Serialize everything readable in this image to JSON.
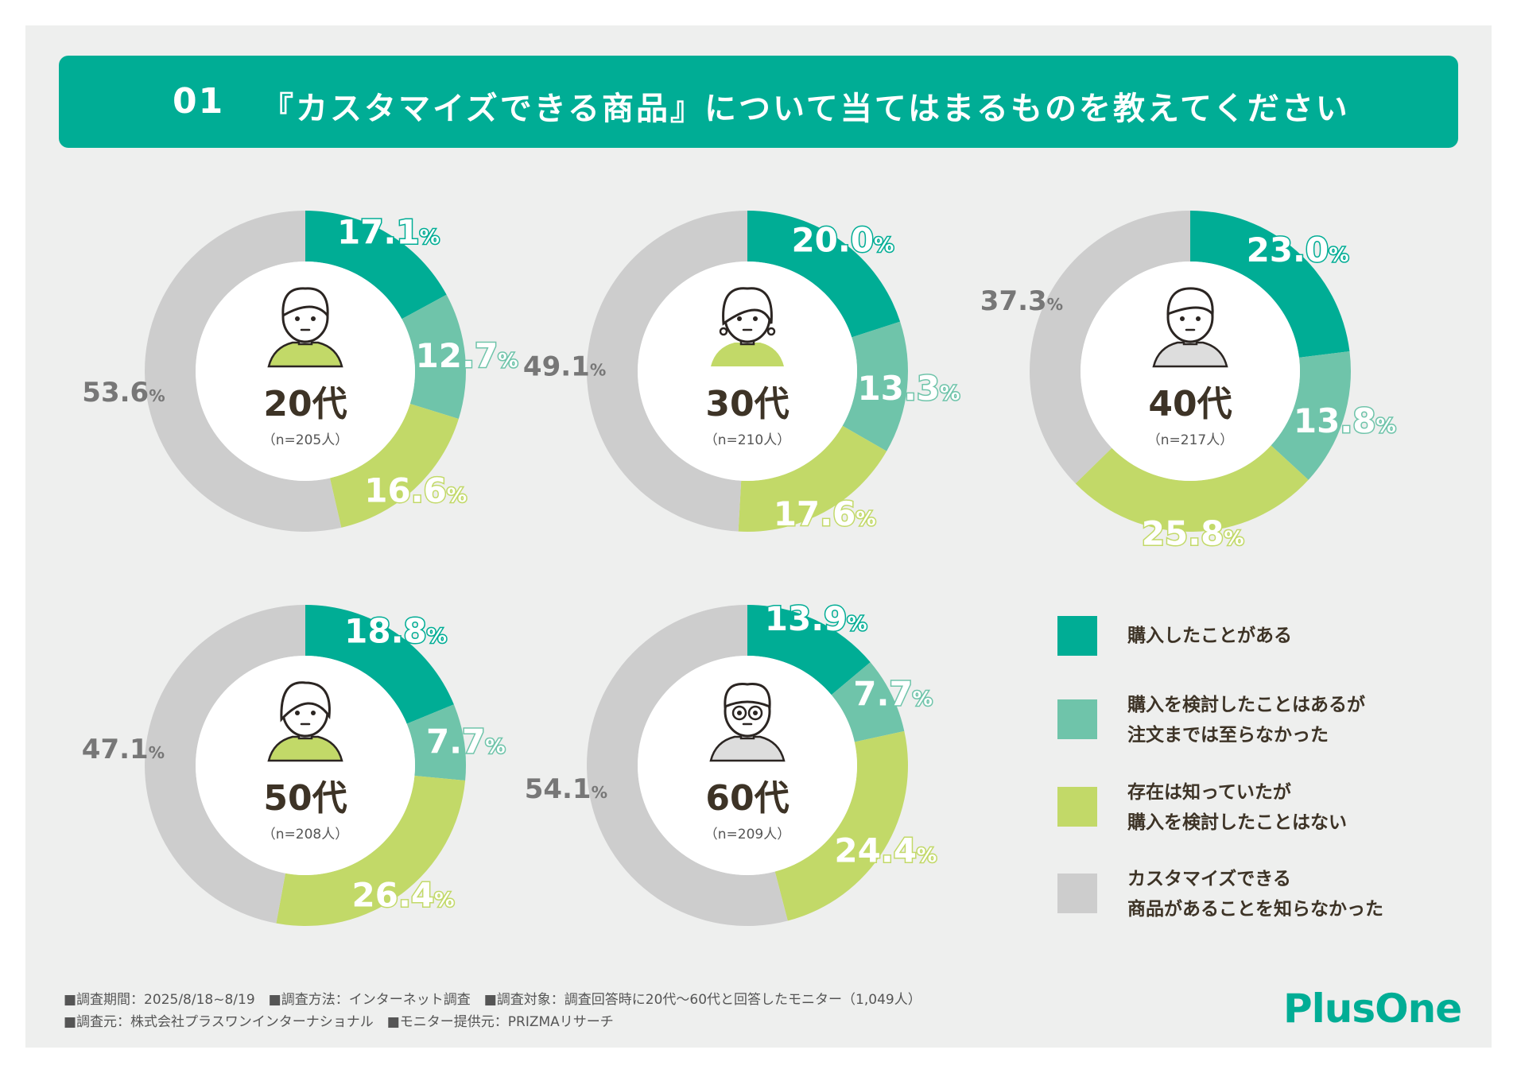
{
  "title": {
    "number": "01",
    "text": "『カスタマイズできる商品』について当てはまるものを教えてください"
  },
  "colors": {
    "purchased": "#00ad95",
    "considered": "#6fc4aa",
    "aware": "#c2d968",
    "unaware": "#cdcdcd",
    "brand": "#00ad95",
    "text": "#3d3326"
  },
  "chart_data": [
    {
      "type": "pie",
      "variant": "donut",
      "group": "20代",
      "n": "（n=205人）",
      "icon": "young-man-avatar-icon",
      "categories": [
        "購入したことがある",
        "購入を検討したことはあるが注文までは至らなかった",
        "存在は知っていたが購入を検討したことはない",
        "カスタマイズできる商品があることを知らなかった"
      ],
      "values": [
        17.1,
        12.7,
        16.6,
        53.6
      ],
      "labels": [
        "17.1",
        "12.7",
        "16.6",
        "53.6"
      ]
    },
    {
      "type": "pie",
      "variant": "donut",
      "group": "30代",
      "n": "（n=210人）",
      "icon": "woman-with-earrings-avatar-icon",
      "categories": [
        "購入したことがある",
        "購入を検討したことはあるが注文までは至らなかった",
        "存在は知っていたが購入を検討したことはない",
        "カスタマイズできる商品があることを知らなかった"
      ],
      "values": [
        20.0,
        13.3,
        17.6,
        49.1
      ],
      "labels": [
        "20.0",
        "13.3",
        "17.6",
        "49.1"
      ]
    },
    {
      "type": "pie",
      "variant": "donut",
      "group": "40代",
      "n": "（n=217人）",
      "icon": "man-with-collar-avatar-icon",
      "categories": [
        "購入したことがある",
        "購入を検討したことはあるが注文までは至らなかった",
        "存在は知っていたが購入を検討したことはない",
        "カスタマイズできる商品があることを知らなかった"
      ],
      "values": [
        23.0,
        13.8,
        25.8,
        37.3
      ],
      "labels": [
        "23.0",
        "13.8",
        "25.8",
        "37.3"
      ]
    },
    {
      "type": "pie",
      "variant": "donut",
      "group": "50代",
      "n": "（n=208人）",
      "icon": "woman-thinking-avatar-icon",
      "categories": [
        "購入したことがある",
        "購入を検討したことはあるが注文までは至らなかった",
        "存在は知っていたが購入を検討したことはない",
        "カスタマイズできる商品があることを知らなかった"
      ],
      "values": [
        18.8,
        7.7,
        26.4,
        47.1
      ],
      "labels": [
        "18.8",
        "7.7",
        "26.4",
        "47.1"
      ]
    },
    {
      "type": "pie",
      "variant": "donut",
      "group": "60代",
      "n": "（n=209人）",
      "icon": "older-man-with-glasses-avatar-icon",
      "categories": [
        "購入したことがある",
        "購入を検討したことはあるが注文までは至らなかった",
        "存在は知っていたが購入を検討したことはない",
        "カスタマイズできる商品があることを知らなかった"
      ],
      "values": [
        13.9,
        7.7,
        24.4,
        54.1
      ],
      "labels": [
        "13.9",
        "7.7",
        "24.4",
        "54.1"
      ]
    }
  ],
  "percent_sign": "%",
  "legend": [
    {
      "key": "purchased",
      "lines": [
        "購入したことがある"
      ]
    },
    {
      "key": "considered",
      "lines": [
        "購入を検討したことはあるが",
        "注文までは至らなかった"
      ]
    },
    {
      "key": "aware",
      "lines": [
        "存在は知っていたが",
        "購入を検討したことはない"
      ]
    },
    {
      "key": "unaware",
      "lines": [
        "カスタマイズできる",
        "商品があることを知らなかった"
      ]
    }
  ],
  "footnotes": {
    "line1": "■調査期間：2025/8/18~8/19　■調査方法：インターネット調査　■調査対象：調査回答時に20代〜60代と回答したモニター（1,049人）",
    "line2": "■調査元：株式会社プラスワンインターナショナル　■モニター提供元：PRIZMAリサーチ"
  },
  "logo": "PlusOne"
}
